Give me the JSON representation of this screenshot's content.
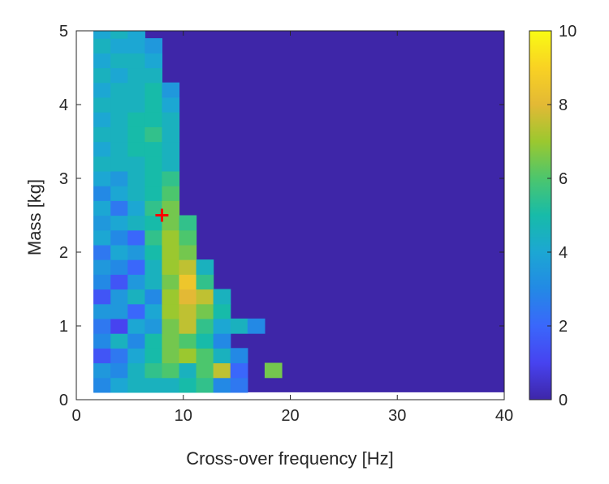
{
  "chart_data": {
    "type": "heatmap",
    "xlabel": "Cross-over frequency [Hz]",
    "ylabel": "Mass [kg]",
    "xlim": [
      0,
      40
    ],
    "ylim": [
      0,
      5
    ],
    "xticks": [
      0,
      10,
      20,
      30,
      40
    ],
    "yticks": [
      0,
      1,
      2,
      3,
      4,
      5
    ],
    "colorbar": {
      "limits": [
        0,
        10
      ],
      "ticks": [
        0,
        2,
        4,
        6,
        8,
        10
      ]
    },
    "colormap": [
      "#3e26a8",
      "#4743f0",
      "#3a67fb",
      "#2389e5",
      "#1ca7d3",
      "#17bba9",
      "#4cc66d",
      "#9bc82f",
      "#e3b935",
      "#f9d223",
      "#f9fb14"
    ],
    "grid": false,
    "data_extent": {
      "x": [
        1.6,
        40
      ],
      "y": [
        0.1,
        5
      ]
    },
    "x": [
      1.6,
      3.2,
      4.8,
      6.4,
      8.0,
      9.6,
      11.2,
      12.8,
      14.4,
      16.0,
      17.6,
      19.2
    ],
    "y": [
      0.1,
      0.3,
      0.5,
      0.7,
      0.9,
      1.1,
      1.3,
      1.5,
      1.7,
      1.9,
      2.1,
      2.3,
      2.5,
      2.7,
      2.9,
      3.1,
      3.3,
      3.5,
      3.7,
      3.9,
      4.1,
      4.3,
      4.5,
      4.7,
      4.9
    ],
    "z": [
      [
        3,
        4,
        4.5,
        4.5,
        4.5,
        5,
        5.5,
        3,
        2.5,
        0,
        0,
        0
      ],
      [
        3.5,
        3,
        4.5,
        5.5,
        6,
        4.5,
        6,
        7.5,
        2,
        0,
        6.5,
        0
      ],
      [
        1.5,
        2.5,
        4,
        5,
        6.5,
        7,
        6,
        4.5,
        3,
        0,
        0,
        0
      ],
      [
        3,
        4.5,
        3,
        5,
        6.5,
        6,
        5,
        3,
        0,
        0,
        0,
        0
      ],
      [
        2.5,
        1,
        4,
        3.5,
        6.5,
        7.5,
        5.5,
        4,
        4.5,
        3,
        0,
        0
      ],
      [
        3.5,
        3.5,
        2,
        4,
        7,
        7.5,
        6.5,
        5,
        0,
        0,
        0,
        0
      ],
      [
        1.5,
        3.5,
        4.5,
        3,
        7,
        8,
        7.5,
        4.5,
        0,
        0,
        0,
        0
      ],
      [
        3,
        1.5,
        3.5,
        4.5,
        6.5,
        8.5,
        5.5,
        0,
        0,
        0,
        0,
        0
      ],
      [
        3.5,
        3,
        2,
        4.5,
        7,
        7.5,
        4.5,
        0,
        0,
        0,
        0,
        0
      ],
      [
        2.5,
        4,
        3.5,
        5,
        7,
        6.5,
        0,
        0,
        0,
        0,
        0,
        0
      ],
      [
        4,
        3,
        2,
        5.5,
        7,
        6,
        0,
        0,
        0,
        0,
        0,
        0
      ],
      [
        3.5,
        4,
        4.5,
        5,
        6.5,
        5.5,
        0,
        0,
        0,
        0,
        0,
        0
      ],
      [
        4,
        2.5,
        4,
        5.5,
        6.5,
        0,
        0,
        0,
        0,
        0,
        0,
        0
      ],
      [
        3,
        4,
        4.5,
        5,
        6,
        0,
        0,
        0,
        0,
        0,
        0,
        0
      ],
      [
        4,
        3.5,
        4.5,
        5,
        5.5,
        0,
        0,
        0,
        0,
        0,
        0,
        0
      ],
      [
        4.5,
        4.5,
        4.5,
        5,
        4.5,
        0,
        0,
        0,
        0,
        0,
        0,
        0
      ],
      [
        4,
        4.5,
        5,
        5,
        4.5,
        0,
        0,
        0,
        0,
        0,
        0,
        0
      ],
      [
        4.5,
        4.5,
        5,
        5.5,
        4.5,
        0,
        0,
        0,
        0,
        0,
        0,
        0
      ],
      [
        4,
        4.5,
        5,
        5,
        4.5,
        0,
        0,
        0,
        0,
        0,
        0,
        0
      ],
      [
        4.5,
        4.5,
        4.5,
        5,
        4,
        0,
        0,
        0,
        0,
        0,
        0,
        0
      ],
      [
        4,
        4.5,
        4.5,
        5,
        3.5,
        0,
        0,
        0,
        0,
        0,
        0,
        0
      ],
      [
        4.5,
        4,
        4.5,
        4.5,
        0,
        0,
        0,
        0,
        0,
        0,
        0,
        0
      ],
      [
        4,
        4.5,
        4.5,
        4,
        0,
        0,
        0,
        0,
        0,
        0,
        0,
        0
      ],
      [
        4.5,
        4,
        4,
        3.5,
        0,
        0,
        0,
        0,
        0,
        0,
        0,
        0
      ],
      [
        4,
        4.5,
        4,
        0,
        0,
        0,
        0,
        0,
        0,
        0,
        0,
        0
      ]
    ],
    "marker": {
      "x": 8,
      "y": 2.5,
      "symbol": "+",
      "color": "#ff0000"
    }
  }
}
